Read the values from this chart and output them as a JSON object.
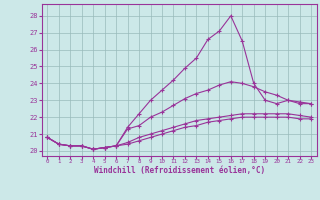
{
  "xlabel": "Windchill (Refroidissement éolien,°C)",
  "background_color": "#cce8e8",
  "line_color": "#993399",
  "grid_color": "#99bbbb",
  "ylim": [
    19.7,
    28.7
  ],
  "xlim": [
    -0.5,
    23.5
  ],
  "yticks": [
    20,
    21,
    22,
    23,
    24,
    25,
    26,
    27,
    28
  ],
  "xticks": [
    0,
    1,
    2,
    3,
    4,
    5,
    6,
    7,
    8,
    9,
    10,
    11,
    12,
    13,
    14,
    15,
    16,
    17,
    18,
    19,
    20,
    21,
    22,
    23
  ],
  "series1": [
    20.8,
    20.4,
    20.3,
    20.3,
    20.1,
    20.2,
    20.3,
    21.4,
    22.2,
    23.0,
    23.6,
    24.2,
    24.9,
    25.5,
    26.6,
    27.1,
    28.0,
    26.5,
    24.0,
    23.0,
    22.8,
    23.0,
    22.8,
    22.8
  ],
  "series2": [
    20.8,
    20.4,
    20.3,
    20.3,
    20.1,
    20.2,
    20.3,
    21.3,
    21.5,
    22.0,
    22.3,
    22.7,
    23.1,
    23.4,
    23.6,
    23.9,
    24.1,
    24.0,
    23.8,
    23.5,
    23.3,
    23.0,
    22.9,
    22.8
  ],
  "series3": [
    20.8,
    20.4,
    20.3,
    20.3,
    20.1,
    20.2,
    20.3,
    20.5,
    20.8,
    21.0,
    21.2,
    21.4,
    21.6,
    21.8,
    21.9,
    22.0,
    22.1,
    22.2,
    22.2,
    22.2,
    22.2,
    22.2,
    22.1,
    22.0
  ],
  "series4": [
    20.8,
    20.4,
    20.3,
    20.3,
    20.1,
    20.2,
    20.3,
    20.4,
    20.6,
    20.8,
    21.0,
    21.2,
    21.4,
    21.5,
    21.7,
    21.8,
    21.9,
    22.0,
    22.0,
    22.0,
    22.0,
    22.0,
    21.9,
    21.9
  ]
}
